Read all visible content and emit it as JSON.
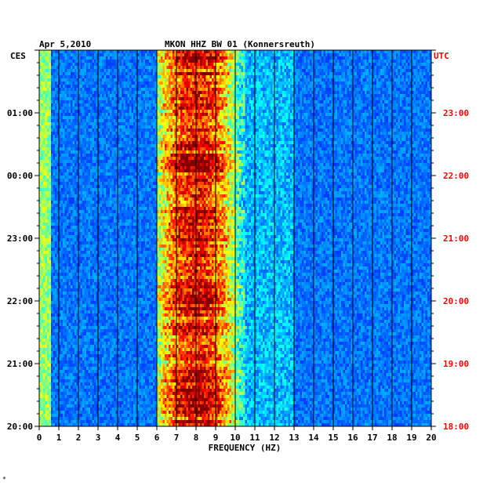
{
  "header": {
    "date": "Apr 5,2010",
    "title": "MKON HHZ BW 01 (Konnersreuth)",
    "left_zone": "CES",
    "right_zone": "UTC"
  },
  "footer": {
    "mark": "*"
  },
  "colors": {
    "right_axis": "#ff0000",
    "background_field": "#0000c8",
    "grid": "#000000"
  },
  "chart_data": {
    "type": "heatmap",
    "title": "MKON HHZ BW 01 (Konnersreuth)",
    "xlabel": "FREQUENCY (HZ)",
    "xlim": [
      0,
      20
    ],
    "x_ticks": [
      "0",
      "1",
      "2",
      "3",
      "4",
      "5",
      "6",
      "7",
      "8",
      "9",
      "10",
      "11",
      "12",
      "13",
      "14",
      "15",
      "16",
      "17",
      "18",
      "19",
      "20"
    ],
    "y_left_ticks": [
      "01:00",
      "00:00",
      "23:00",
      "22:00",
      "21:00",
      "20:00"
    ],
    "y_right_ticks": [
      "23:00",
      "22:00",
      "21:00",
      "20:00",
      "19:00",
      "18:00"
    ],
    "grid": true,
    "energy_band_hz": [
      6,
      10.5
    ],
    "peak_frequency_hz": 8
  }
}
